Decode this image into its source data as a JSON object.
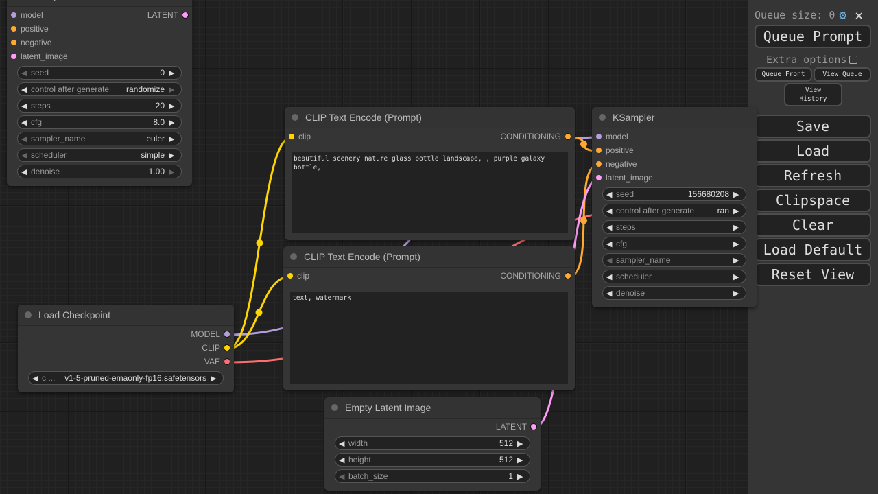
{
  "colors": {
    "model": "#b39ddb",
    "clip": "#ffd500",
    "conditioning": "#ffa931",
    "latent": "#ff9cf9",
    "vae": "#ff6e6e"
  },
  "nodes": [
    {
      "id": "ksampler-top",
      "title": "KSampler",
      "inputs": [
        {
          "label": "model",
          "type": "model"
        },
        {
          "label": "positive",
          "type": "conditioning"
        },
        {
          "label": "negative",
          "type": "conditioning"
        },
        {
          "label": "latent_image",
          "type": "latent"
        }
      ],
      "outputs": [
        {
          "label": "LATENT",
          "type": "latent"
        }
      ],
      "widgets": [
        {
          "label": "seed",
          "value": "0",
          "l": "dim",
          "r": "on"
        },
        {
          "label": "control after generate",
          "value": "randomize",
          "l": "on",
          "r": "dim"
        },
        {
          "label": "steps",
          "value": "20",
          "l": "on",
          "r": "on"
        },
        {
          "label": "cfg",
          "value": "8.0",
          "l": "on",
          "r": "on"
        },
        {
          "label": "sampler_name",
          "value": "euler",
          "l": "dim",
          "r": "on"
        },
        {
          "label": "scheduler",
          "value": "simple",
          "l": "dim",
          "r": "on"
        },
        {
          "label": "denoise",
          "value": "1.00",
          "l": "on",
          "r": "dim"
        }
      ]
    },
    {
      "id": "clip-positive",
      "title": "CLIP Text Encode (Prompt)",
      "inputs": [
        {
          "label": "clip",
          "type": "clip"
        }
      ],
      "outputs": [
        {
          "label": "CONDITIONING",
          "type": "conditioning"
        }
      ],
      "text": "beautiful scenery nature glass bottle landscape, , purple galaxy bottle,"
    },
    {
      "id": "clip-negative",
      "title": "CLIP Text Encode (Prompt)",
      "inputs": [
        {
          "label": "clip",
          "type": "clip"
        }
      ],
      "outputs": [
        {
          "label": "CONDITIONING",
          "type": "conditioning"
        }
      ],
      "text": "text, watermark"
    },
    {
      "id": "load-checkpoint",
      "title": "Load Checkpoint",
      "inputs": [],
      "outputs": [
        {
          "label": "MODEL",
          "type": "model"
        },
        {
          "label": "CLIP",
          "type": "clip"
        },
        {
          "label": "VAE",
          "type": "vae"
        }
      ],
      "widgets": [
        {
          "label": "c ...",
          "value": "v1-5-pruned-emaonly-fp16.safetensors",
          "l": "on",
          "r": "on"
        }
      ]
    },
    {
      "id": "empty-latent",
      "title": "Empty Latent Image",
      "inputs": [],
      "outputs": [
        {
          "label": "LATENT",
          "type": "latent"
        }
      ],
      "widgets": [
        {
          "label": "width",
          "value": "512",
          "l": "on",
          "r": "on"
        },
        {
          "label": "height",
          "value": "512",
          "l": "on",
          "r": "on"
        },
        {
          "label": "batch_size",
          "value": "1",
          "l": "dim",
          "r": "on"
        }
      ]
    },
    {
      "id": "ksampler-right",
      "title": "KSampler",
      "inputs": [
        {
          "label": "model",
          "type": "model"
        },
        {
          "label": "positive",
          "type": "conditioning"
        },
        {
          "label": "negative",
          "type": "conditioning"
        },
        {
          "label": "latent_image",
          "type": "latent"
        }
      ],
      "outputs": [],
      "widgets": [
        {
          "label": "seed",
          "value": "156680208",
          "l": "on",
          "r": "on"
        },
        {
          "label": "control after generate",
          "value": "ran",
          "l": "on",
          "r": "on"
        },
        {
          "label": "steps",
          "value": "",
          "l": "on",
          "r": "on"
        },
        {
          "label": "cfg",
          "value": "",
          "l": "on",
          "r": "on"
        },
        {
          "label": "sampler_name",
          "value": "",
          "l": "dim",
          "r": "on"
        },
        {
          "label": "scheduler",
          "value": "",
          "l": "on",
          "r": "on"
        },
        {
          "label": "denoise",
          "value": "",
          "l": "on",
          "r": "on"
        }
      ]
    }
  ],
  "sidebar": {
    "queue_size": "Queue size: 0",
    "settings_icon": "gear-icon",
    "close_icon": "close-icon",
    "queue_prompt": "Queue Prompt",
    "extra_options": "Extra options",
    "extra_options_checked": false,
    "queue_front": "Queue Front",
    "view_queue": "View Queue",
    "view_history": "View History",
    "buttons": [
      "Save",
      "Load",
      "Refresh",
      "Clipspace",
      "Clear",
      "Load Default",
      "Reset View"
    ]
  }
}
